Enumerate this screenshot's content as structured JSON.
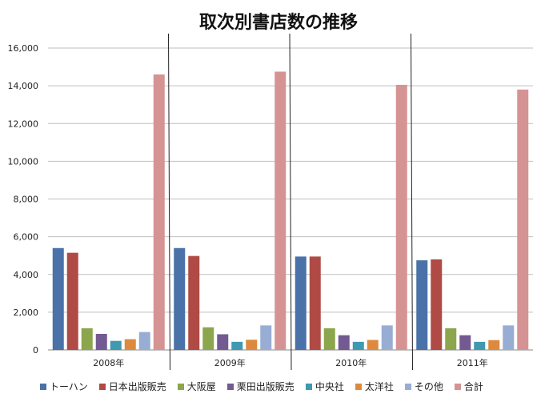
{
  "chart_data": {
    "type": "bar",
    "title": "取次別書店数の推移",
    "categories": [
      "2008年",
      "2009年",
      "2010年",
      "2011年"
    ],
    "ylim": [
      0,
      16000
    ],
    "yticks": [
      "0",
      "2,000",
      "4,000",
      "6,000",
      "8,000",
      "10,000",
      "12,000",
      "14,000",
      "16,000"
    ],
    "grid": true,
    "legend_position": "bottom",
    "series": [
      {
        "name": "トーハン",
        "color": "#4A72A8",
        "values": [
          5400,
          5400,
          4950,
          4750
        ]
      },
      {
        "name": "日本出版販売",
        "color": "#B04A45",
        "values": [
          5150,
          4980,
          4950,
          4800
        ]
      },
      {
        "name": "大阪屋",
        "color": "#8BA64C",
        "values": [
          1150,
          1200,
          1150,
          1150
        ]
      },
      {
        "name": "栗田出版販売",
        "color": "#735A91",
        "values": [
          850,
          830,
          780,
          780
        ]
      },
      {
        "name": "中央社",
        "color": "#3F99B0",
        "values": [
          480,
          430,
          430,
          430
        ]
      },
      {
        "name": "太洋社",
        "color": "#DD8A3F",
        "values": [
          570,
          540,
          530,
          520
        ]
      },
      {
        "name": "その他",
        "color": "#98ADD4",
        "values": [
          950,
          1300,
          1300,
          1300
        ]
      },
      {
        "name": "合計",
        "color": "#D69393",
        "values": [
          14600,
          14750,
          14050,
          13800
        ]
      }
    ]
  }
}
